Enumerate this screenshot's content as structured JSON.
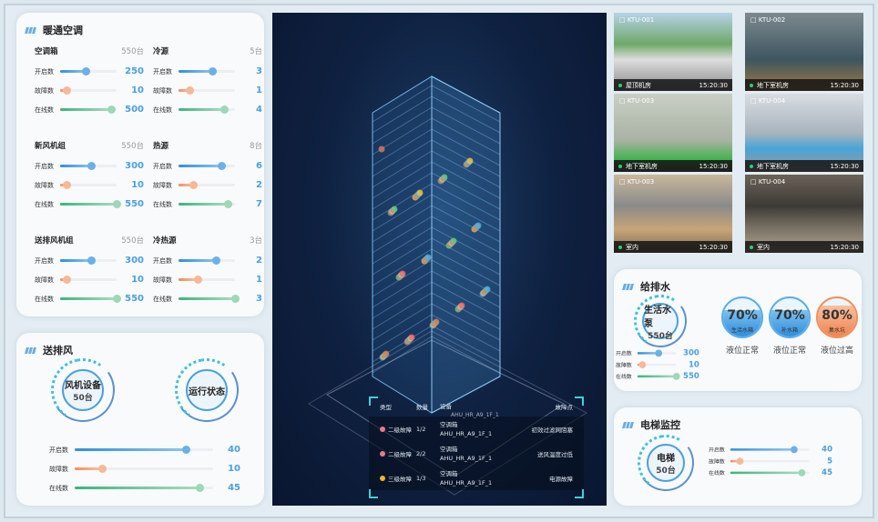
{
  "hvac": {
    "title": "暖通空调",
    "groups": [
      {
        "name": "空调箱",
        "total": "550台",
        "rows": [
          {
            "label": "开启数",
            "value": 250,
            "max": 550
          },
          {
            "label": "故障数",
            "value": 10,
            "max": 550
          },
          {
            "label": "在线数",
            "value": 500,
            "max": 550
          }
        ]
      },
      {
        "name": "冷源",
        "total": "5台",
        "rows": [
          {
            "label": "开启数",
            "value": 3,
            "max": 5
          },
          {
            "label": "故障数",
            "value": 1,
            "max": 5
          },
          {
            "label": "在线数",
            "value": 4,
            "max": 5
          }
        ]
      },
      {
        "name": "新风机组",
        "total": "550台",
        "rows": [
          {
            "label": "开启数",
            "value": 300,
            "max": 550
          },
          {
            "label": "故障数",
            "value": 10,
            "max": 550
          },
          {
            "label": "在线数",
            "value": 550,
            "max": 550
          }
        ]
      },
      {
        "name": "热源",
        "total": "8台",
        "rows": [
          {
            "label": "开启数",
            "value": 6,
            "max": 8
          },
          {
            "label": "故障数",
            "value": 2,
            "max": 8
          },
          {
            "label": "在线数",
            "value": 7,
            "max": 8
          }
        ]
      },
      {
        "name": "送排风机组",
        "total": "550台",
        "rows": [
          {
            "label": "开启数",
            "value": 300,
            "max": 550
          },
          {
            "label": "故障数",
            "value": 10,
            "max": 550
          },
          {
            "label": "在线数",
            "value": 550,
            "max": 550
          }
        ]
      },
      {
        "name": "冷热源",
        "total": "3台",
        "rows": [
          {
            "label": "开启数",
            "value": 2,
            "max": 3
          },
          {
            "label": "故障数",
            "value": 1,
            "max": 3
          },
          {
            "label": "在线数",
            "value": 3,
            "max": 3
          }
        ]
      }
    ]
  },
  "ventilation": {
    "title": "送排风",
    "device": {
      "name": "风机设备",
      "count": "50台"
    },
    "status": {
      "name": "运行状态"
    },
    "rows": [
      {
        "label": "开启数",
        "value": 40,
        "max": 50
      },
      {
        "label": "故障数",
        "value": 10,
        "max": 50
      },
      {
        "label": "在线数",
        "value": 45,
        "max": 50
      }
    ]
  },
  "faults": {
    "headers": [
      "类型",
      "数量",
      "设备",
      "故障点"
    ],
    "partial_device": "AHU_HR_A9_1F_1",
    "rows": [
      {
        "type": "二级故障",
        "color": "#e87a8a",
        "count": "1/2",
        "device": "空调箱",
        "code": "AHU_HR_A9_1F_1",
        "point": "初效过滤网阻塞"
      },
      {
        "type": "二级故障",
        "color": "#e87a8a",
        "count": "2/2",
        "device": "空调箱",
        "code": "AHU_HR_A9_1F_1",
        "point": "送风温度过低"
      },
      {
        "type": "三级故障",
        "color": "#f0b428",
        "count": "1/3",
        "device": "空调箱",
        "code": "AHU_HR_A9_1F_1",
        "point": "电源故障"
      }
    ]
  },
  "cameras": [
    {
      "id": "KTU-001",
      "location": "屋顶机房",
      "time": "15:20:30"
    },
    {
      "id": "KTU-002",
      "location": "地下室机房",
      "time": "15:20:30"
    },
    {
      "id": "KTU-003",
      "location": "地下室机房",
      "time": "15:20:30"
    },
    {
      "id": "KTU-004",
      "location": "地下室机房",
      "time": "15:20:30"
    },
    {
      "id": "KTU-003",
      "location": "室内",
      "time": "15:20:30"
    },
    {
      "id": "KTU-004",
      "location": "室内",
      "time": "15:20:30"
    }
  ],
  "water": {
    "title": "给排水",
    "pump": {
      "name": "生活水泵",
      "count": "550台"
    },
    "rows": [
      {
        "label": "开启数",
        "value": 300,
        "max": 550
      },
      {
        "label": "故障数",
        "value": 10,
        "max": 550
      },
      {
        "label": "在线数",
        "value": 550,
        "max": 550
      }
    ],
    "tanks": [
      {
        "percent": "70%",
        "level": 70,
        "name": "生活水箱",
        "status": "液位正常",
        "color": "blue"
      },
      {
        "percent": "70%",
        "level": 70,
        "name": "补水箱",
        "status": "液位正常",
        "color": "blue"
      },
      {
        "percent": "80%",
        "level": 80,
        "name": "集水坑",
        "status": "液位过高",
        "color": "orange"
      }
    ]
  },
  "elevator": {
    "title": "电梯监控",
    "device": {
      "name": "电梯",
      "count": "50台"
    },
    "rows": [
      {
        "label": "开启数",
        "value": 40,
        "max": 50
      },
      {
        "label": "故障数",
        "value": 5,
        "max": 50
      },
      {
        "label": "在线数",
        "value": 45,
        "max": 50
      }
    ]
  }
}
